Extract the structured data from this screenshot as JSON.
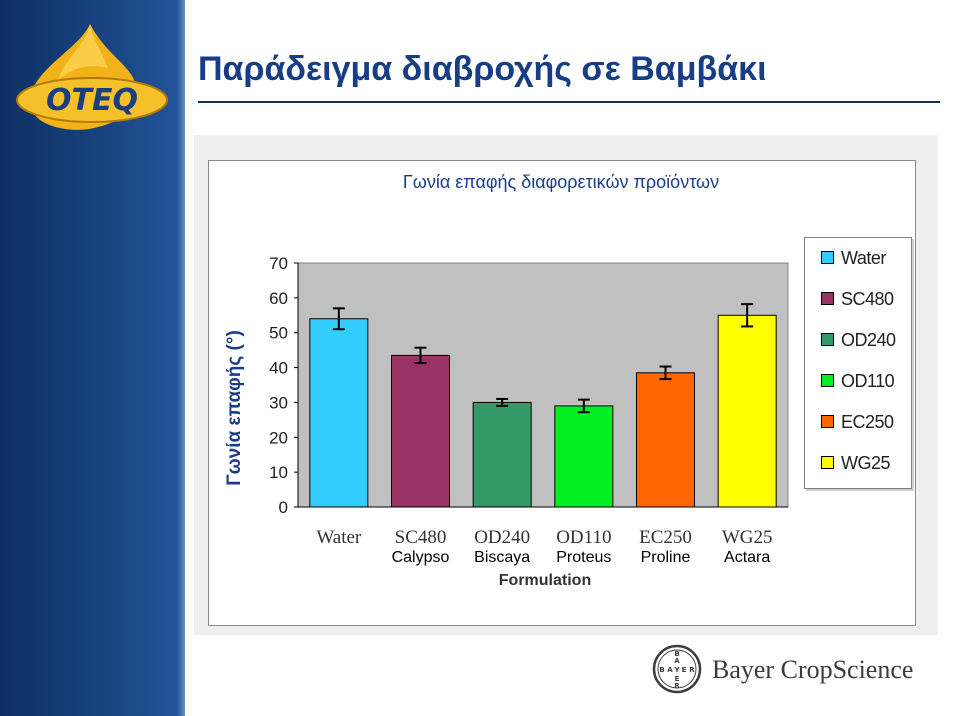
{
  "slide": {
    "title": "Παράδειγμα διαβροχής σε Βαμβάκι",
    "logo_text": "OTEQ",
    "brand": "Bayer CropScience",
    "bayer_logo_text": "BAYER"
  },
  "colors": {
    "sidebar": "#18437f",
    "title": "#173d86",
    "logo_gold": "#f2b31a"
  },
  "chart_data": {
    "type": "bar",
    "title": "Γωνία επαφής διαφορετικών προϊόντων",
    "ylabel": "Γωνία επαφής (°)",
    "xlabel": "Formulation",
    "categories": [
      "Water",
      "SC480",
      "OD240",
      "OD110",
      "EC250",
      "WG25"
    ],
    "products": [
      "",
      "Calypso",
      "Biscaya",
      "Proteus",
      "Proline",
      "Actara"
    ],
    "values": [
      54,
      43.5,
      30,
      29,
      38.5,
      55
    ],
    "errors": [
      3,
      2.2,
      1,
      1.8,
      1.8,
      3.2
    ],
    "colors": [
      "#33ccff",
      "#993366",
      "#339966",
      "#00ee22",
      "#ff6600",
      "#ffff00"
    ],
    "ylim": [
      0,
      70
    ],
    "yticks": [
      0,
      10,
      20,
      30,
      40,
      50,
      60,
      70
    ],
    "grid": false,
    "plot_background": "#c0c0c0",
    "legend": {
      "placement": "right",
      "items": [
        "Water",
        "SC480",
        "OD240",
        "OD110",
        "EC250",
        "WG25"
      ]
    }
  }
}
